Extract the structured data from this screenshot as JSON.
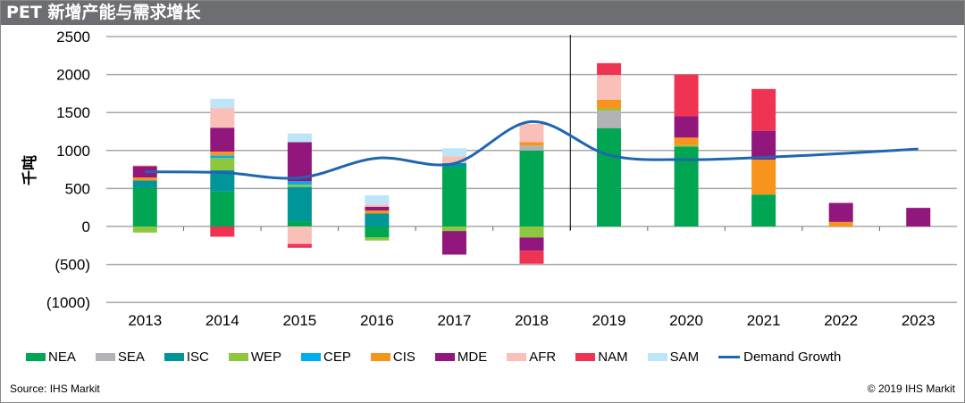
{
  "header": {
    "title": "PET 新增产能与需求增长"
  },
  "footer": {
    "source": "Source: IHS Markit",
    "copyright": "© 2019 IHS Markit"
  },
  "chart_data": {
    "type": "bar",
    "stacked": true,
    "title": "PET 新增产能与需求增长",
    "ylabel": "千吨",
    "ylim": [
      -1000,
      2500
    ],
    "yticks": [
      2500,
      2000,
      1500,
      1000,
      500,
      0,
      -500,
      -1000
    ],
    "ytick_labels": [
      "2500",
      "2000",
      "1500",
      "1000",
      "500",
      "0",
      "(500)",
      "(1000)"
    ],
    "categories": [
      "2013",
      "2014",
      "2015",
      "2016",
      "2017",
      "2018",
      "2019",
      "2020",
      "2021",
      "2022",
      "2023"
    ],
    "divider_after": "2018",
    "legend_position": "bottom",
    "series": [
      {
        "name": "NEA",
        "color": "#00a651",
        "values": [
          510,
          460,
          70,
          -145,
          775,
          1000,
          1295,
          1050,
          420,
          0,
          0
        ]
      },
      {
        "name": "SEA",
        "color": "#b1b3b6",
        "values": [
          0,
          0,
          0,
          0,
          0,
          65,
          230,
          0,
          0,
          0,
          0
        ]
      },
      {
        "name": "ISC",
        "color": "#009598",
        "values": [
          95,
          280,
          450,
          170,
          60,
          0,
          0,
          0,
          0,
          0,
          0
        ]
      },
      {
        "name": "WEP",
        "color": "#8dc63f",
        "values": [
          -80,
          160,
          30,
          -40,
          -60,
          -145,
          25,
          20,
          0,
          0,
          0
        ]
      },
      {
        "name": "CEP",
        "color": "#00aeef",
        "values": [
          0,
          35,
          45,
          0,
          0,
          0,
          0,
          0,
          0,
          0,
          0
        ]
      },
      {
        "name": "CIS",
        "color": "#f7941d",
        "values": [
          40,
          50,
          0,
          40,
          0,
          45,
          120,
          100,
          460,
          60,
          0
        ]
      },
      {
        "name": "MDE",
        "color": "#92177d",
        "values": [
          145,
          315,
          515,
          50,
          -310,
          -175,
          0,
          280,
          380,
          250,
          245
        ]
      },
      {
        "name": "AFR",
        "color": "#f9bfb8",
        "values": [
          0,
          260,
          -230,
          30,
          90,
          240,
          325,
          0,
          0,
          0,
          0
        ]
      },
      {
        "name": "NAM",
        "color": "#ef3353",
        "values": [
          10,
          -135,
          -50,
          0,
          0,
          -170,
          155,
          550,
          550,
          0,
          0
        ]
      },
      {
        "name": "SAM",
        "color": "#bde5f8",
        "values": [
          0,
          120,
          115,
          120,
          105,
          0,
          0,
          0,
          0,
          0,
          0
        ]
      }
    ],
    "line": {
      "name": "Demand Growth",
      "color": "#1f66b0",
      "values": [
        720,
        710,
        640,
        900,
        830,
        1380,
        940,
        880,
        910,
        960,
        1020
      ]
    }
  }
}
